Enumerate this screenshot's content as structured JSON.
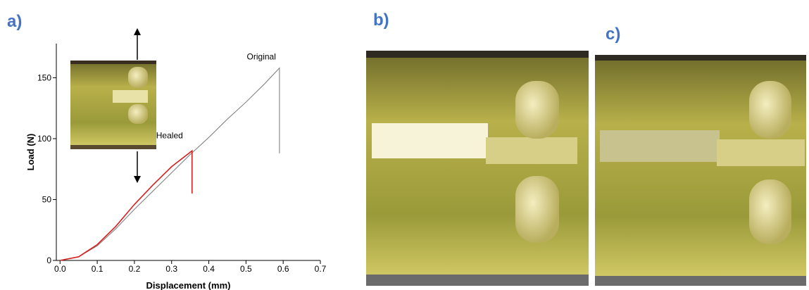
{
  "panels": [
    "a)",
    "b)",
    "c)"
  ],
  "chart_data": {
    "type": "line",
    "xlabel": "Displacement (mm)",
    "ylabel": "Load (N)",
    "xlim": [
      -0.01,
      0.7
    ],
    "ylim": [
      0,
      178
    ],
    "xticks": [
      {
        "value": 0,
        "label": "0.0"
      },
      0.1,
      0.2,
      0.3,
      0.4,
      0.5,
      0.6,
      0.7
    ],
    "yticks": [
      0,
      50,
      100,
      150
    ],
    "series": [
      {
        "name": "Original",
        "color": "#777777",
        "x": [
          0,
          0.05,
          0.1,
          0.15,
          0.2,
          0.25,
          0.3,
          0.35,
          0.4,
          0.45,
          0.5,
          0.55,
          0.59,
          0.59
        ],
        "values": [
          0,
          3,
          12,
          26,
          42,
          57,
          72,
          87,
          101,
          116,
          130,
          145,
          158,
          88
        ]
      },
      {
        "name": "Healed",
        "color": "#d62020",
        "x": [
          0,
          0.05,
          0.1,
          0.15,
          0.2,
          0.25,
          0.3,
          0.355,
          0.355
        ],
        "values": [
          0,
          3,
          13,
          28,
          46,
          62,
          77,
          90,
          55
        ]
      }
    ]
  }
}
